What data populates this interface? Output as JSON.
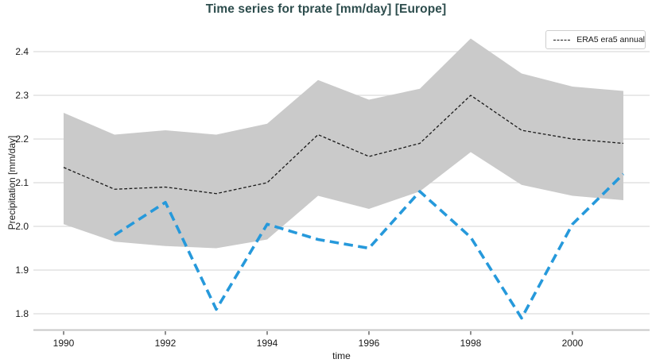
{
  "chart_data": {
    "type": "line",
    "title": "Time series for tprate [mm/day] [Europe]",
    "xlabel": "time",
    "ylabel": "Precipitation [mm/day]",
    "xlim": [
      1989.406,
      2001.516
    ],
    "ylim": [
      1.7627,
      2.4582
    ],
    "xticks": [
      1990,
      1992,
      1994,
      1996,
      1998,
      2000
    ],
    "yticks": [
      1.8,
      1.9,
      2.0,
      2.1,
      2.2,
      2.3,
      2.4
    ],
    "grid": true,
    "legend_position": "upper right",
    "legend_entries": [
      "ERA5 era5 annual"
    ],
    "colors": {
      "title": "#2d4d4d",
      "era5_line": "#1a1a1a",
      "band": "#cacaca",
      "blue_line": "#2699db",
      "grid": "#dcdcdc",
      "spine": "#c8c8c8",
      "tick": "#444444"
    },
    "series": [
      {
        "name": "ERA5 era5 annual uncertainty band",
        "slug": "uncertainty-band",
        "type": "band",
        "color": "#cacaca",
        "x": [
          1990,
          1991,
          1992,
          1993,
          1994,
          1995,
          1996,
          1997,
          1998,
          1999,
          2000,
          2001
        ],
        "upper": [
          2.26,
          2.21,
          2.22,
          2.21,
          2.235,
          2.335,
          2.29,
          2.315,
          2.43,
          2.35,
          2.32,
          2.31
        ],
        "lower": [
          2.005,
          1.965,
          1.955,
          1.95,
          1.97,
          2.07,
          2.04,
          2.08,
          2.17,
          2.095,
          2.07,
          2.06
        ]
      },
      {
        "name": "ERA5 era5 annual",
        "slug": "era5-line",
        "type": "line",
        "color": "#1a1a1a",
        "width": 1.3,
        "dash": [
          3.8,
          2.5
        ],
        "x": [
          1990,
          1991,
          1992,
          1993,
          1994,
          1995,
          1996,
          1997,
          1998,
          1999,
          2000,
          2001
        ],
        "values": [
          2.135,
          2.085,
          2.09,
          2.075,
          2.1,
          2.21,
          2.16,
          2.19,
          2.3,
          2.22,
          2.2,
          2.19
        ]
      },
      {
        "name": "unlabeled blue dashed series",
        "slug": "blue-dashed-line",
        "type": "line",
        "color": "#2699db",
        "width": 3.6,
        "dash": [
          11.5,
          6.5
        ],
        "x": [
          1991,
          1992,
          1993,
          1994,
          1995,
          1996,
          1997,
          1998,
          1999,
          2000,
          2001
        ],
        "values": [
          1.98,
          2.055,
          1.81,
          2.005,
          1.97,
          1.95,
          2.08,
          1.975,
          1.79,
          2.005,
          2.12
        ]
      }
    ]
  }
}
